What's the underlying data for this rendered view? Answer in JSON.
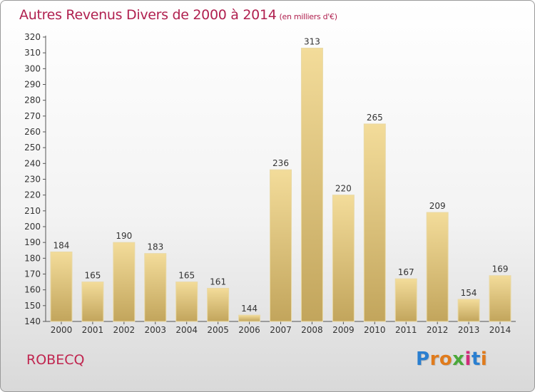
{
  "title": "Autres Revenus Divers de 2000 à 2014",
  "title_unit": "(en milliers d'€)",
  "commune": "ROBECQ",
  "logo": {
    "letters": [
      "P",
      "r",
      "o",
      "x",
      "i",
      "t",
      "i"
    ],
    "colors": [
      "#2a7fd0",
      "#e07b1c",
      "#e07b1c",
      "#4aa83a",
      "#d12a7a",
      "#2a7fd0",
      "#e07b1c"
    ]
  },
  "colors": {
    "title": "#b0204f",
    "bar_light": "#f3dc9a",
    "bar_dark": "#c2a55c",
    "bar_edge": "#e9d9a6",
    "axis": "#555555"
  },
  "chart_data": {
    "type": "bar",
    "categories": [
      "2000",
      "2001",
      "2002",
      "2003",
      "2004",
      "2005",
      "2006",
      "2007",
      "2008",
      "2009",
      "2010",
      "2011",
      "2012",
      "2013",
      "2014"
    ],
    "values": [
      184,
      165,
      190,
      183,
      165,
      161,
      144,
      236,
      313,
      220,
      265,
      167,
      209,
      154,
      169
    ],
    "ylim": [
      140,
      320
    ],
    "ytick_step": 10,
    "grid": false,
    "data_labels": true
  }
}
